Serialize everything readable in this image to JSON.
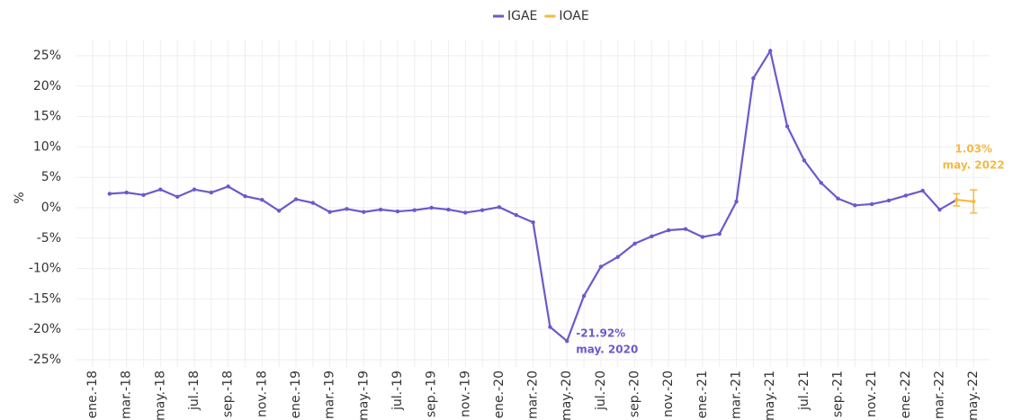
{
  "chart_data": {
    "type": "line",
    "y_label": "%",
    "categories": [
      "ene.-18",
      null,
      "mar.-18",
      null,
      "may.-18",
      null,
      "jul.-18",
      null,
      "sep.-18",
      null,
      "nov.-18",
      null,
      "ene.-19",
      null,
      "mar.-19",
      null,
      "may.-19",
      null,
      "jul.-19",
      null,
      "sep.-19",
      null,
      "nov.-19",
      null,
      "ene.-20",
      null,
      "mar.-20",
      null,
      "may.-20",
      null,
      "jul.-20",
      null,
      "sep.-20",
      null,
      "nov.-20",
      null,
      "ene.-21",
      null,
      "mar.-21",
      null,
      "may.-21",
      null,
      "jul.-21",
      null,
      "sep.-21",
      null,
      "nov.-21",
      null,
      "ene.-22",
      null,
      "mar.-22",
      null,
      "may.-22"
    ],
    "series": [
      {
        "name": "IGAE",
        "color": "#6a5acd",
        "values": [
          null,
          2.3,
          2.5,
          2.1,
          3.0,
          1.8,
          3.0,
          2.5,
          3.5,
          1.9,
          1.3,
          -0.5,
          1.4,
          0.8,
          -0.7,
          -0.2,
          -0.7,
          -0.3,
          -0.6,
          -0.4,
          0.0,
          -0.3,
          -0.8,
          -0.4,
          0.1,
          -1.2,
          -2.4,
          -19.6,
          -21.92,
          -14.5,
          -9.7,
          -8.1,
          -5.9,
          -4.7,
          -3.7,
          -3.5,
          -4.8,
          -4.3,
          1.0,
          21.3,
          25.8,
          13.4,
          7.8,
          4.1,
          1.5,
          0.4,
          0.6,
          1.2,
          2.0,
          2.8,
          -0.3,
          1.3,
          null
        ]
      },
      {
        "name": "IOAE",
        "color": "#f5b942",
        "values": [
          null,
          null,
          null,
          null,
          null,
          null,
          null,
          null,
          null,
          null,
          null,
          null,
          null,
          null,
          null,
          null,
          null,
          null,
          null,
          null,
          null,
          null,
          null,
          null,
          null,
          null,
          null,
          null,
          null,
          null,
          null,
          null,
          null,
          null,
          null,
          null,
          null,
          null,
          null,
          null,
          null,
          null,
          null,
          null,
          null,
          null,
          null,
          null,
          null,
          null,
          null,
          1.3,
          1.03
        ],
        "errors": [
          null,
          null,
          null,
          null,
          null,
          null,
          null,
          null,
          null,
          null,
          null,
          null,
          null,
          null,
          null,
          null,
          null,
          null,
          null,
          null,
          null,
          null,
          null,
          null,
          null,
          null,
          null,
          null,
          null,
          null,
          null,
          null,
          null,
          null,
          null,
          null,
          null,
          null,
          null,
          null,
          null,
          null,
          null,
          null,
          null,
          null,
          null,
          null,
          null,
          null,
          null,
          1.0,
          1.9
        ]
      }
    ],
    "annotations": [
      {
        "series": 0,
        "index": 28,
        "value_label": "-21.92%",
        "date_label": "may. 2020"
      },
      {
        "series": 1,
        "index": 52,
        "value_label": "1.03%",
        "date_label": "may. 2022"
      }
    ],
    "ylim": [
      -25,
      25
    ],
    "yticks": [
      {
        "value": -25,
        "label": "-25%"
      },
      {
        "value": -20,
        "label": "-20%"
      },
      {
        "value": -15,
        "label": "-15%"
      },
      {
        "value": -10,
        "label": "-10%"
      },
      {
        "value": -5,
        "label": "-5%"
      },
      {
        "value": 0,
        "label": "0%"
      },
      {
        "value": 5,
        "label": "5%"
      },
      {
        "value": 10,
        "label": "10%"
      },
      {
        "value": 15,
        "label": "15%"
      },
      {
        "value": 20,
        "label": "20%"
      },
      {
        "value": 25,
        "label": "25%"
      }
    ],
    "grid": true,
    "legend": "top"
  }
}
